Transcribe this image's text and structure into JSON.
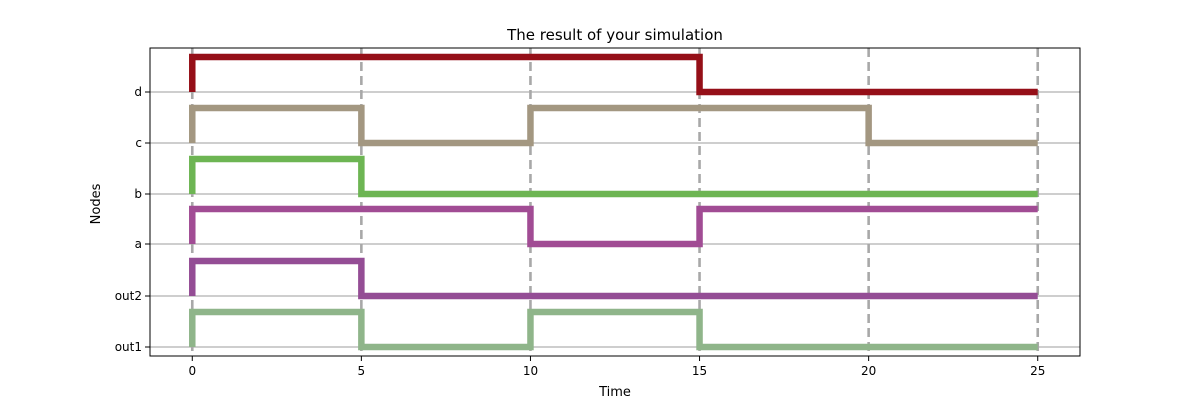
{
  "chart_data": {
    "type": "line",
    "title": "The result of your simulation",
    "xlabel": "Time",
    "ylabel": "Nodes",
    "xlim": [
      -1.25,
      26.25
    ],
    "x_ticks": [
      0,
      5,
      10,
      15,
      20,
      25
    ],
    "y_categories": [
      "out1",
      "out2",
      "a",
      "b",
      "c",
      "d"
    ],
    "grid": {
      "horizontal": true,
      "vertical_dashed_at": [
        0,
        5,
        10,
        15,
        20,
        25
      ]
    },
    "series": [
      {
        "label": "out1",
        "color": "#8fb58a",
        "steps": [
          {
            "t": 0,
            "v": 1
          },
          {
            "t": 5,
            "v": 0
          },
          {
            "t": 10,
            "v": 1
          },
          {
            "t": 15,
            "v": 0
          },
          {
            "t": 25,
            "v": 0
          }
        ]
      },
      {
        "label": "out2",
        "color": "#944d95",
        "steps": [
          {
            "t": 0,
            "v": 1
          },
          {
            "t": 5,
            "v": 0
          },
          {
            "t": 25,
            "v": 0
          }
        ]
      },
      {
        "label": "a",
        "color": "#a14c94",
        "steps": [
          {
            "t": 0,
            "v": 1
          },
          {
            "t": 10,
            "v": 0
          },
          {
            "t": 15,
            "v": 1
          },
          {
            "t": 25,
            "v": 1
          }
        ]
      },
      {
        "label": "b",
        "color": "#6db553",
        "steps": [
          {
            "t": 0,
            "v": 1
          },
          {
            "t": 5,
            "v": 0
          },
          {
            "t": 25,
            "v": 0
          }
        ]
      },
      {
        "label": "c",
        "color": "#a39781",
        "steps": [
          {
            "t": 0,
            "v": 1
          },
          {
            "t": 5,
            "v": 0
          },
          {
            "t": 10,
            "v": 1
          },
          {
            "t": 20,
            "v": 0
          },
          {
            "t": 25,
            "v": 0
          }
        ]
      },
      {
        "label": "d",
        "color": "#950f18",
        "steps": [
          {
            "t": 0,
            "v": 1
          },
          {
            "t": 15,
            "v": 0
          },
          {
            "t": 25,
            "v": 0
          }
        ]
      }
    ]
  }
}
